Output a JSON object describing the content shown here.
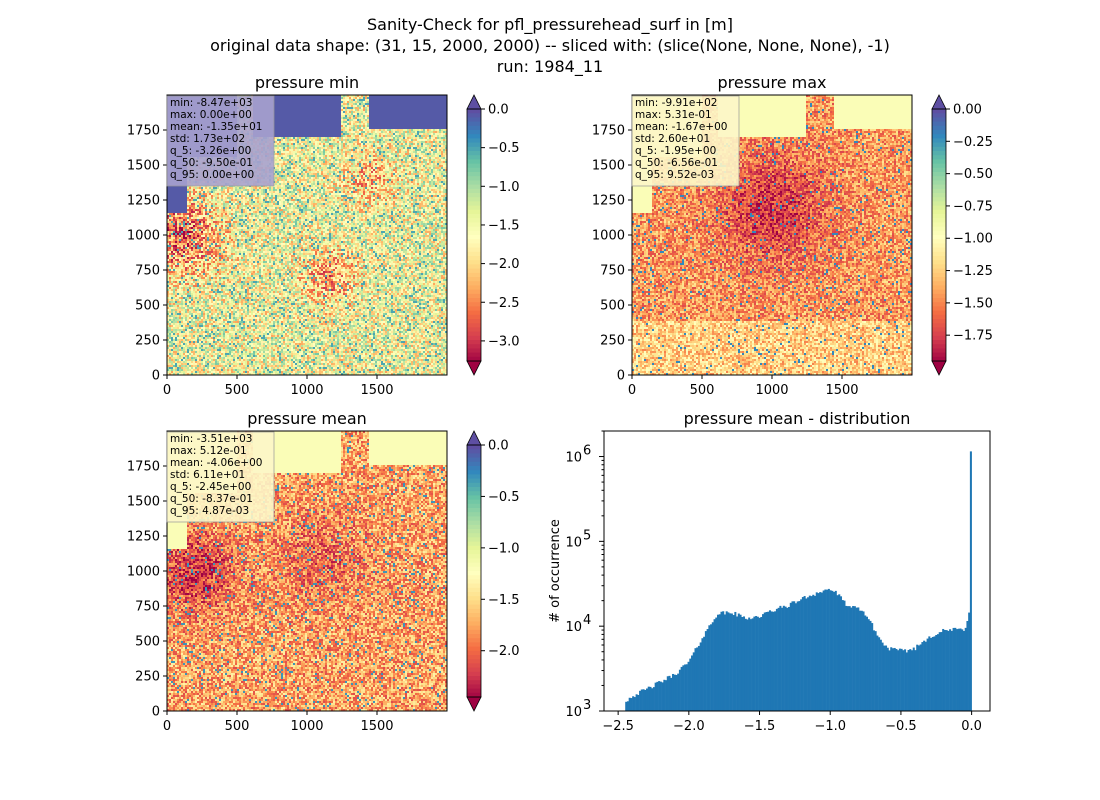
{
  "figure": {
    "title_lines": [
      "Sanity-Check for pfl_pressurehead_surf in [m]",
      "original data shape: (31, 15, 2000, 2000) -- sliced with: (slice(None, None, None), -1)",
      "run: 1984_11"
    ]
  },
  "chart_data": [
    {
      "type": "heatmap",
      "title": "pressure min",
      "colormap": "Spectral",
      "xticks": [
        "0",
        "500",
        "1000",
        "1500"
      ],
      "xtick_values": [
        0,
        500,
        1000,
        1500
      ],
      "yticks": [
        "0",
        "250",
        "500",
        "750",
        "1000",
        "1250",
        "1500",
        "1750"
      ],
      "ytick_values": [
        0,
        250,
        500,
        750,
        1000,
        1250,
        1500,
        1750
      ],
      "xlim": [
        0,
        2000
      ],
      "ylim": [
        0,
        2000
      ],
      "colorbar": {
        "range": [
          -3.26,
          0.0
        ],
        "ticks": [
          "0.0",
          "−0.5",
          "−1.0",
          "−1.5",
          "−2.0",
          "−2.5",
          "−3.0"
        ],
        "tick_values": [
          0.0,
          -0.5,
          -1.0,
          -1.5,
          -2.0,
          -2.5,
          -3.0
        ],
        "extend_top_color": "#5e4fa2",
        "extend_bottom_color": "#9e0142"
      },
      "stats": [
        "min: -8.47e+03",
        "max: 0.00e+00",
        "mean: -1.35e+01",
        "std: 1.73e+02",
        "q_5: -3.26e+00",
        "q_50: -9.50e-01",
        "q_95: 0.00e+00"
      ],
      "stats_box_color": "#a8a2d0"
    },
    {
      "type": "heatmap",
      "title": "pressure max",
      "colormap": "Spectral",
      "xticks": [
        "0",
        "500",
        "1000",
        "1500"
      ],
      "xtick_values": [
        0,
        500,
        1000,
        1500
      ],
      "yticks": [
        "0",
        "250",
        "500",
        "750",
        "1000",
        "1250",
        "1500",
        "1750"
      ],
      "ytick_values": [
        0,
        250,
        500,
        750,
        1000,
        1250,
        1500,
        1750
      ],
      "xlim": [
        0,
        2000
      ],
      "ylim": [
        0,
        2000
      ],
      "colorbar": {
        "range": [
          -1.95,
          0.0
        ],
        "ticks": [
          "0.00",
          "−0.25",
          "−0.50",
          "−0.75",
          "−1.00",
          "−1.25",
          "−1.50",
          "−1.75"
        ],
        "tick_values": [
          0.0,
          -0.25,
          -0.5,
          -0.75,
          -1.0,
          -1.25,
          -1.5,
          -1.75
        ],
        "extend_top_color": "#5e4fa2",
        "extend_bottom_color": "#9e0142"
      },
      "stats": [
        "min: -9.91e+02",
        "max: 5.31e-01",
        "mean: -1.67e+00",
        "std: 2.60e+01",
        "q_5: -1.95e+00",
        "q_50: -6.56e-01",
        "q_95: 9.52e-03"
      ],
      "stats_box_color": "#fdf7c8"
    },
    {
      "type": "heatmap",
      "title": "pressure mean",
      "colormap": "Spectral",
      "xticks": [
        "0",
        "500",
        "1000",
        "1500"
      ],
      "xtick_values": [
        0,
        500,
        1000,
        1500
      ],
      "yticks": [
        "0",
        "250",
        "500",
        "750",
        "1000",
        "1250",
        "1500",
        "1750"
      ],
      "ytick_values": [
        0,
        250,
        500,
        750,
        1000,
        1250,
        1500,
        1750
      ],
      "xlim": [
        0,
        2000
      ],
      "ylim": [
        0,
        2000
      ],
      "colorbar": {
        "range": [
          -2.45,
          0.0
        ],
        "ticks": [
          "0.0",
          "−0.5",
          "−1.0",
          "−1.5",
          "−2.0"
        ],
        "tick_values": [
          0.0,
          -0.5,
          -1.0,
          -1.5,
          -2.0
        ],
        "extend_top_color": "#5e4fa2",
        "extend_bottom_color": "#9e0142"
      },
      "stats": [
        "min: -3.51e+03",
        "max: 5.12e-01",
        "mean: -4.06e+00",
        "std: 6.11e+01",
        "q_5: -2.45e+00",
        "q_50: -8.37e-01",
        "q_95: 4.87e-03"
      ],
      "stats_box_color": "#fdf7c8"
    },
    {
      "type": "bar",
      "title": "pressure mean - distribution",
      "ylabel": "# of occurrence",
      "yscale": "log",
      "color": "#1f77b4",
      "xlim": [
        -2.6,
        0.13
      ],
      "ylim": [
        1000,
        2000000
      ],
      "xticks": [
        "−2.5",
        "−2.0",
        "−1.5",
        "−1.0",
        "−0.5",
        "0.0"
      ],
      "xtick_values": [
        -2.5,
        -2.0,
        -1.5,
        -1.0,
        -0.5,
        0.0
      ],
      "yticks": [
        {
          "base": "10",
          "exp": "3",
          "value": 1000
        },
        {
          "base": "10",
          "exp": "4",
          "value": 10000
        },
        {
          "base": "10",
          "exp": "5",
          "value": 100000
        },
        {
          "base": "10",
          "exp": "6",
          "value": 1000000
        }
      ],
      "bins": {
        "start": -2.45,
        "end": 0.0,
        "count": 200
      },
      "profile_x": [
        -2.45,
        -2.4,
        -2.3,
        -2.2,
        -2.1,
        -2.0,
        -1.9,
        -1.8,
        -1.7,
        -1.6,
        -1.5,
        -1.4,
        -1.3,
        -1.2,
        -1.1,
        -1.0,
        -0.95,
        -0.9,
        -0.85,
        -0.8,
        -0.75,
        -0.7,
        -0.65,
        -0.6,
        -0.55,
        -0.5,
        -0.45,
        -0.4,
        -0.3,
        -0.2,
        -0.1,
        -0.05,
        -0.03,
        -0.01,
        0.0
      ],
      "profile_y": [
        1300,
        1500,
        1800,
        2200,
        2700,
        3800,
        7500,
        14000,
        14500,
        12500,
        13000,
        15500,
        17500,
        21000,
        24500,
        27500,
        24000,
        19000,
        16500,
        16000,
        14000,
        10000,
        7000,
        5600,
        5300,
        5100,
        5200,
        5500,
        7500,
        8800,
        9200,
        9000,
        12000,
        18000,
        1150000
      ]
    }
  ]
}
